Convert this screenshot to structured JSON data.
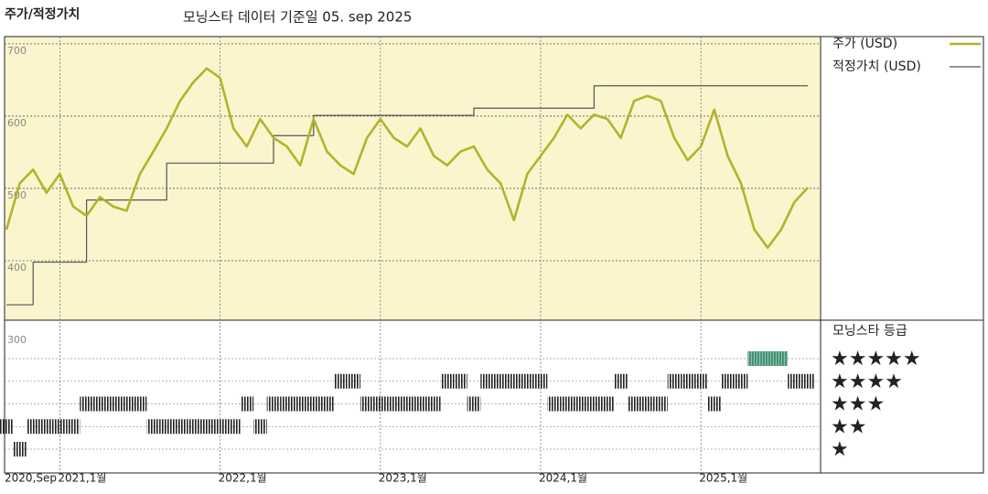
{
  "chart_data": {
    "type": "line",
    "title": "주가/적정가치",
    "subtitle": "모닝스타 데이터 기준일 05. sep 2025",
    "x": [
      "2020-09",
      "2020-10",
      "2020-11",
      "2020-12",
      "2021-01",
      "2021-02",
      "2021-03",
      "2021-04",
      "2021-05",
      "2021-06",
      "2021-07",
      "2021-08",
      "2021-09",
      "2021-10",
      "2021-11",
      "2021-12",
      "2022-01",
      "2022-02",
      "2022-03",
      "2022-04",
      "2022-05",
      "2022-06",
      "2022-07",
      "2022-08",
      "2022-09",
      "2022-10",
      "2022-11",
      "2022-12",
      "2023-01",
      "2023-02",
      "2023-03",
      "2023-04",
      "2023-05",
      "2023-06",
      "2023-07",
      "2023-08",
      "2023-09",
      "2023-10",
      "2023-11",
      "2023-12",
      "2024-01",
      "2024-02",
      "2024-03",
      "2024-04",
      "2024-05",
      "2024-06",
      "2024-07",
      "2024-08",
      "2024-09",
      "2024-10",
      "2024-11",
      "2024-12",
      "2025-01",
      "2025-02",
      "2025-03",
      "2025-04",
      "2025-05",
      "2025-06",
      "2025-07",
      "2025-08",
      "2025-09"
    ],
    "series": [
      {
        "name": "주가 (USD)",
        "color": "#b5b22c",
        "values": [
          443,
          507,
          526,
          494,
          520,
          475,
          462,
          488,
          475,
          469,
          520,
          551,
          583,
          621,
          647,
          666,
          653,
          583,
          558,
          596,
          570,
          558,
          532,
          596,
          551,
          532,
          520,
          570,
          596,
          570,
          558,
          583,
          545,
          532,
          551,
          558,
          526,
          507,
          456,
          520,
          545,
          570,
          602,
          583,
          602,
          596,
          570,
          621,
          628,
          621,
          570,
          539,
          558,
          609,
          545,
          507,
          443,
          418,
          443,
          481,
          501
        ]
      },
      {
        "name": "적정가치 (USD)",
        "color": "#555555",
        "step": true,
        "values": [
          339,
          339,
          398,
          398,
          398,
          398,
          484,
          484,
          484,
          484,
          484,
          484,
          535,
          535,
          535,
          535,
          535,
          535,
          535,
          535,
          573,
          573,
          573,
          601,
          601,
          601,
          601,
          601,
          601,
          601,
          601,
          601,
          601,
          601,
          601,
          611,
          611,
          611,
          611,
          611,
          611,
          611,
          611,
          611,
          642,
          642,
          642,
          642,
          642,
          642,
          642,
          642,
          642,
          642,
          642,
          642,
          642,
          642,
          642,
          642,
          642
        ]
      }
    ],
    "ylim": [
      300,
      710
    ],
    "yticks": [
      300,
      400,
      500,
      600,
      700
    ],
    "xticks": [
      {
        "value": "2020-09",
        "label": "2020,Sep"
      },
      {
        "value": "2021-01",
        "label": "2021,1월"
      },
      {
        "value": "2022-01",
        "label": "2022,1월"
      },
      {
        "value": "2023-01",
        "label": "2023,1월"
      },
      {
        "value": "2024-01",
        "label": "2024,1월"
      },
      {
        "value": "2025-01",
        "label": "2025,1월"
      }
    ],
    "grid": true,
    "rating": {
      "title": "모닝스타 등급",
      "color": "#222222",
      "top_color": "#3f8c70",
      "values": [
        2,
        1,
        2,
        2,
        2,
        2,
        3,
        3,
        3,
        3,
        3,
        2,
        2,
        2,
        2,
        2,
        2,
        2,
        3,
        2,
        3,
        3,
        3,
        3,
        3,
        4,
        4,
        3,
        3,
        3,
        3,
        3,
        3,
        4,
        4,
        3,
        4,
        4,
        4,
        4,
        4,
        3,
        3,
        3,
        3,
        3,
        4,
        3,
        3,
        3,
        4,
        4,
        4,
        3,
        4,
        4,
        5,
        5,
        5,
        4,
        4
      ],
      "ticks": [
        {
          "value": 5,
          "label": "★★★★★"
        },
        {
          "value": 4,
          "label": "★★★★"
        },
        {
          "value": 3,
          "label": "★★★"
        },
        {
          "value": 2,
          "label": "★★"
        },
        {
          "value": 1,
          "label": "★"
        }
      ]
    }
  }
}
